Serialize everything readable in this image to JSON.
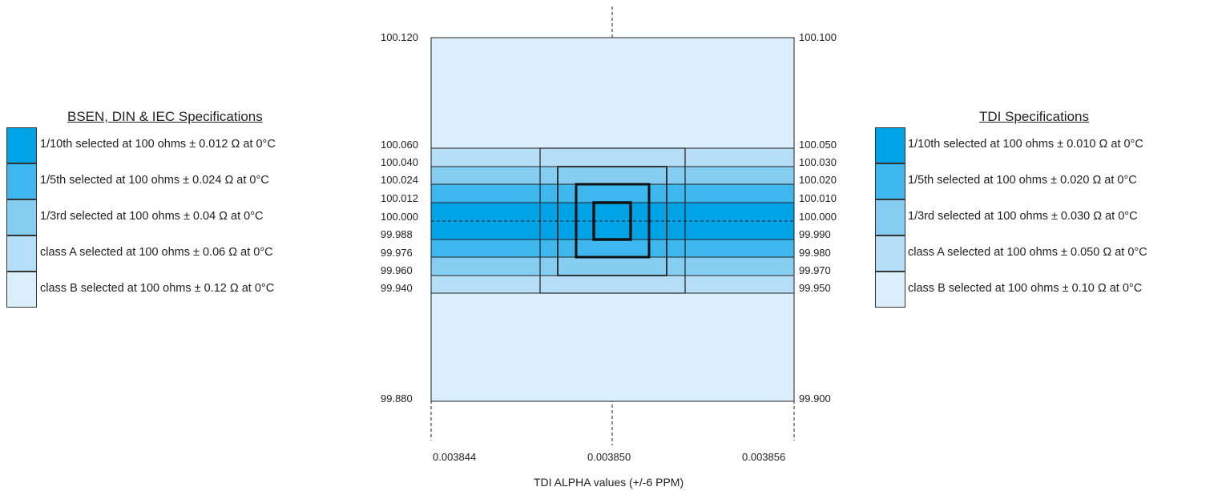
{
  "colors": {
    "band_1_10": "#00a3e6",
    "band_1_5": "#3db7ee",
    "band_1_3": "#86cdf2",
    "band_A": "#b6def6",
    "band_B": "#daeefb",
    "outline": "#222222"
  },
  "left_legend": {
    "title": "BSEN, DIN & IEC Specifications",
    "items": [
      {
        "text": "1/10th  selected at 100 ohms ± 0.012 Ω  at 0°C"
      },
      {
        "text": "1/5th    selected at 100 ohms ± 0.024 Ω  at 0°C"
      },
      {
        "text": "1/3rd   selected at 100 ohms ±  0.04 Ω   at 0°C"
      },
      {
        "text": "class A selected at 100 ohms ±  0.06 Ω   at 0°C"
      },
      {
        "text": "class B selected at 100 ohms ±  0.12 Ω   at 0°C"
      }
    ]
  },
  "right_legend": {
    "title": "TDI Specifications",
    "items": [
      {
        "text": "1/10th  selected at 100 ohms ± 0.010 Ω  at 0°C"
      },
      {
        "text": "1/5th    selected at 100 ohms ± 0.020 Ω  at 0°C"
      },
      {
        "text": "1/3rd    selected at 100 ohms ± 0.030 Ω  at 0°C"
      },
      {
        "text": "class A selected at 100 ohms ± 0.050 Ω  at 0°C"
      },
      {
        "text": "class B selected at 100 ohms ±  0.10 Ω   at 0°C"
      }
    ]
  },
  "diagram": {
    "left_ticks": [
      "100.120",
      "100.060",
      "100.040",
      "100.024",
      "100.012",
      "100.000",
      "99.988",
      "99.976",
      "99.960",
      "99.940",
      "99.880"
    ],
    "right_ticks": [
      "100.100",
      "100.050",
      "100.030",
      "100.020",
      "100.010",
      "100.000",
      "99.990",
      "99.980",
      "99.970",
      "99.950",
      "99.900"
    ],
    "x_ticks": [
      "0.003844",
      "0.003850",
      "0.003856"
    ],
    "x_title": "TDI ALPHA values (+/-6 PPM)"
  }
}
